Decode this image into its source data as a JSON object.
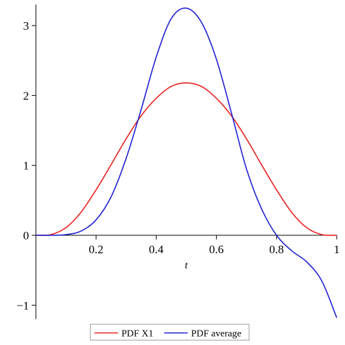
{
  "chart_data": {
    "type": "line",
    "title": "",
    "xlabel": "t",
    "ylabel": "",
    "xlim": [
      0,
      1
    ],
    "ylim": [
      -1.2,
      3.3
    ],
    "xticks": [
      {
        "value": 0.2,
        "label": "0.2"
      },
      {
        "value": 0.4,
        "label": "0.4"
      },
      {
        "value": 0.6,
        "label": "0.6"
      },
      {
        "value": 0.8,
        "label": "0.8"
      },
      {
        "value": 1.0,
        "label": "1"
      }
    ],
    "yticks": [
      {
        "value": -1,
        "label": "−1"
      },
      {
        "value": 0,
        "label": "0"
      },
      {
        "value": 1,
        "label": "1"
      },
      {
        "value": 2,
        "label": "2"
      },
      {
        "value": 3,
        "label": "3"
      }
    ],
    "grid": false,
    "legend_position": "bottom-center",
    "series": [
      {
        "name": "PDF X1",
        "color": "#e8201f",
        "x": [
          0,
          0.05,
          0.1,
          0.15,
          0.2,
          0.25,
          0.3,
          0.35,
          0.4,
          0.45,
          0.5,
          0.55,
          0.6,
          0.65,
          0.7,
          0.75,
          0.8,
          0.85,
          0.9,
          0.95,
          1.0
        ],
        "y": [
          0,
          0.01,
          0.11,
          0.33,
          0.65,
          1.01,
          1.38,
          1.71,
          1.96,
          2.13,
          2.18,
          2.13,
          1.96,
          1.71,
          1.38,
          1.01,
          0.65,
          0.33,
          0.11,
          0.01,
          0
        ]
      },
      {
        "name": "PDF average",
        "color": "#1f1fd4",
        "x": [
          0,
          0.05,
          0.1,
          0.15,
          0.2,
          0.25,
          0.3,
          0.35,
          0.4,
          0.45,
          0.5,
          0.55,
          0.6,
          0.65,
          0.7,
          0.75,
          0.8,
          0.85,
          0.9,
          0.95,
          1.0
        ],
        "y": [
          0,
          0,
          0.01,
          0.06,
          0.22,
          0.55,
          1.1,
          1.8,
          2.55,
          3.1,
          3.25,
          3.05,
          2.52,
          1.75,
          0.95,
          0.38,
          0.0,
          -0.22,
          -0.38,
          -0.65,
          -1.18
        ]
      }
    ]
  }
}
